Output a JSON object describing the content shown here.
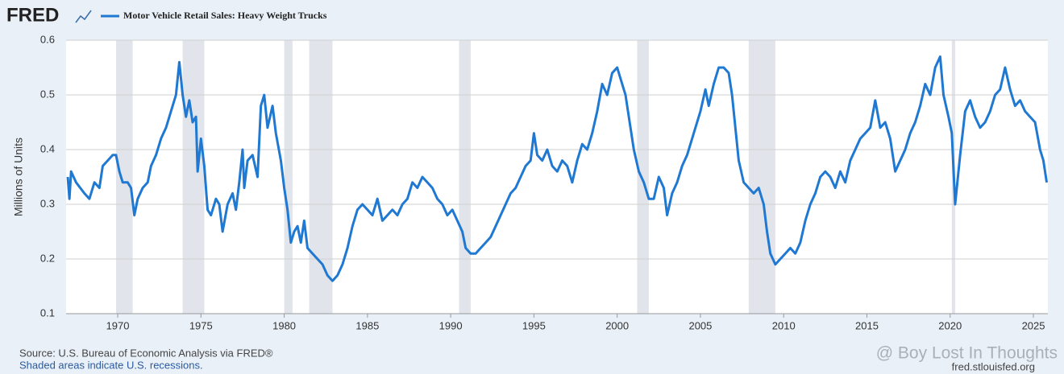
{
  "chart_data": {
    "type": "line",
    "logo": "FRED",
    "title": "Motor Vehicle Retail Sales: Heavy Weight Trucks",
    "y_label": "Millions of Units",
    "source": "Source: U.S. Bureau of Economic Analysis via FRED®",
    "note": "Shaded areas indicate U.S. recessions.",
    "url": "fred.stlouisfed.org",
    "watermark": "@ Boy Lost In Thoughts",
    "xlim": [
      1966.9,
      2025.87
    ],
    "xticks": [
      1970,
      1975,
      1980,
      1985,
      1990,
      1995,
      2000,
      2005,
      2010,
      2015,
      2020,
      2025
    ],
    "ylim": [
      0.1,
      0.6
    ],
    "yticks": [
      0.1,
      0.2,
      0.3,
      0.4,
      0.5,
      0.6
    ],
    "grid": true,
    "recession_color": "#e1e4ea",
    "recessions": [
      [
        1969.9,
        1970.9
      ],
      [
        1973.9,
        1975.2
      ],
      [
        1980.0,
        1980.5
      ],
      [
        1981.5,
        1982.9
      ],
      [
        1990.5,
        1991.2
      ],
      [
        2001.2,
        2001.9
      ],
      [
        2007.9,
        2009.5
      ],
      [
        2020.1,
        2020.3
      ]
    ],
    "x": [
      1967.0,
      1967.1,
      1967.2,
      1967.5,
      1968.0,
      1968.3,
      1968.6,
      1968.9,
      1969.1,
      1969.4,
      1969.7,
      1969.9,
      1970.1,
      1970.3,
      1970.6,
      1970.8,
      1971.0,
      1971.2,
      1971.5,
      1971.8,
      1972.0,
      1972.3,
      1972.6,
      1972.9,
      1973.2,
      1973.5,
      1973.7,
      1973.9,
      1974.1,
      1974.3,
      1974.5,
      1974.7,
      1974.8,
      1975.0,
      1975.2,
      1975.4,
      1975.6,
      1975.9,
      1976.1,
      1976.3,
      1976.6,
      1976.9,
      1977.1,
      1977.3,
      1977.5,
      1977.6,
      1977.8,
      1978.1,
      1978.4,
      1978.6,
      1978.8,
      1979.0,
      1979.3,
      1979.5,
      1979.8,
      1980.0,
      1980.2,
      1980.4,
      1980.6,
      1980.8,
      1981.0,
      1981.2,
      1981.4,
      1981.7,
      1982.0,
      1982.3,
      1982.6,
      1982.9,
      1983.2,
      1983.5,
      1983.8,
      1984.1,
      1984.4,
      1984.7,
      1985.0,
      1985.3,
      1985.6,
      1985.9,
      1986.2,
      1986.5,
      1986.8,
      1987.1,
      1987.4,
      1987.7,
      1988.0,
      1988.3,
      1988.6,
      1988.9,
      1989.2,
      1989.5,
      1989.8,
      1990.1,
      1990.4,
      1990.7,
      1990.9,
      1991.2,
      1991.5,
      1991.8,
      1992.1,
      1992.4,
      1992.7,
      1993.0,
      1993.3,
      1993.6,
      1993.9,
      1994.2,
      1994.5,
      1994.8,
      1995.0,
      1995.2,
      1995.5,
      1995.8,
      1996.1,
      1996.4,
      1996.7,
      1997.0,
      1997.3,
      1997.6,
      1997.9,
      1998.2,
      1998.5,
      1998.8,
      1999.1,
      1999.4,
      1999.7,
      2000.0,
      2000.3,
      2000.5,
      2000.8,
      2001.0,
      2001.3,
      2001.6,
      2001.9,
      2002.2,
      2002.5,
      2002.8,
      2003.0,
      2003.3,
      2003.6,
      2003.9,
      2004.2,
      2004.5,
      2004.8,
      2005.0,
      2005.3,
      2005.5,
      2005.8,
      2006.1,
      2006.4,
      2006.7,
      2006.9,
      2007.1,
      2007.3,
      2007.6,
      2007.9,
      2008.2,
      2008.5,
      2008.8,
      2009.0,
      2009.2,
      2009.5,
      2009.8,
      2010.1,
      2010.4,
      2010.7,
      2011.0,
      2011.3,
      2011.6,
      2011.9,
      2012.2,
      2012.5,
      2012.8,
      2013.1,
      2013.4,
      2013.7,
      2014.0,
      2014.3,
      2014.6,
      2014.9,
      2015.2,
      2015.5,
      2015.8,
      2016.1,
      2016.4,
      2016.7,
      2017.0,
      2017.3,
      2017.6,
      2017.9,
      2018.2,
      2018.5,
      2018.8,
      2019.1,
      2019.4,
      2019.6,
      2019.9,
      2020.1,
      2020.3,
      2020.6,
      2020.9,
      2021.2,
      2021.5,
      2021.8,
      2022.1,
      2022.4,
      2022.7,
      2023.0,
      2023.3,
      2023.6,
      2023.9,
      2024.2,
      2024.5,
      2024.8,
      2025.1,
      2025.4,
      2025.6,
      2025.8
    ],
    "series": [
      {
        "name": "Motor Vehicle Retail Sales: Heavy Weight Trucks",
        "color": "#1f78d1",
        "values": [
          0.35,
          0.31,
          0.36,
          0.34,
          0.32,
          0.31,
          0.34,
          0.33,
          0.37,
          0.38,
          0.39,
          0.39,
          0.36,
          0.34,
          0.34,
          0.33,
          0.28,
          0.31,
          0.33,
          0.34,
          0.37,
          0.39,
          0.42,
          0.44,
          0.47,
          0.5,
          0.56,
          0.5,
          0.46,
          0.49,
          0.45,
          0.46,
          0.36,
          0.42,
          0.37,
          0.29,
          0.28,
          0.31,
          0.3,
          0.25,
          0.3,
          0.32,
          0.29,
          0.34,
          0.4,
          0.33,
          0.38,
          0.39,
          0.35,
          0.48,
          0.5,
          0.44,
          0.48,
          0.43,
          0.38,
          0.33,
          0.29,
          0.23,
          0.25,
          0.26,
          0.23,
          0.27,
          0.22,
          0.21,
          0.2,
          0.19,
          0.17,
          0.16,
          0.17,
          0.19,
          0.22,
          0.26,
          0.29,
          0.3,
          0.29,
          0.28,
          0.31,
          0.27,
          0.28,
          0.29,
          0.28,
          0.3,
          0.31,
          0.34,
          0.33,
          0.35,
          0.34,
          0.33,
          0.31,
          0.3,
          0.28,
          0.29,
          0.27,
          0.25,
          0.22,
          0.21,
          0.21,
          0.22,
          0.23,
          0.24,
          0.26,
          0.28,
          0.3,
          0.32,
          0.33,
          0.35,
          0.37,
          0.38,
          0.43,
          0.39,
          0.38,
          0.4,
          0.37,
          0.36,
          0.38,
          0.37,
          0.34,
          0.38,
          0.41,
          0.4,
          0.43,
          0.47,
          0.52,
          0.5,
          0.54,
          0.55,
          0.52,
          0.5,
          0.44,
          0.4,
          0.36,
          0.34,
          0.31,
          0.31,
          0.35,
          0.33,
          0.28,
          0.32,
          0.34,
          0.37,
          0.39,
          0.42,
          0.45,
          0.47,
          0.51,
          0.48,
          0.52,
          0.55,
          0.55,
          0.54,
          0.5,
          0.44,
          0.38,
          0.34,
          0.33,
          0.32,
          0.33,
          0.3,
          0.25,
          0.21,
          0.19,
          0.2,
          0.21,
          0.22,
          0.21,
          0.23,
          0.27,
          0.3,
          0.32,
          0.35,
          0.36,
          0.35,
          0.33,
          0.36,
          0.34,
          0.38,
          0.4,
          0.42,
          0.43,
          0.44,
          0.49,
          0.44,
          0.45,
          0.42,
          0.36,
          0.38,
          0.4,
          0.43,
          0.45,
          0.48,
          0.52,
          0.5,
          0.55,
          0.57,
          0.5,
          0.46,
          0.43,
          0.3,
          0.39,
          0.47,
          0.49,
          0.46,
          0.44,
          0.45,
          0.47,
          0.5,
          0.51,
          0.55,
          0.51,
          0.48,
          0.49,
          0.47,
          0.46,
          0.45,
          0.4,
          0.38,
          0.34
        ]
      }
    ]
  }
}
